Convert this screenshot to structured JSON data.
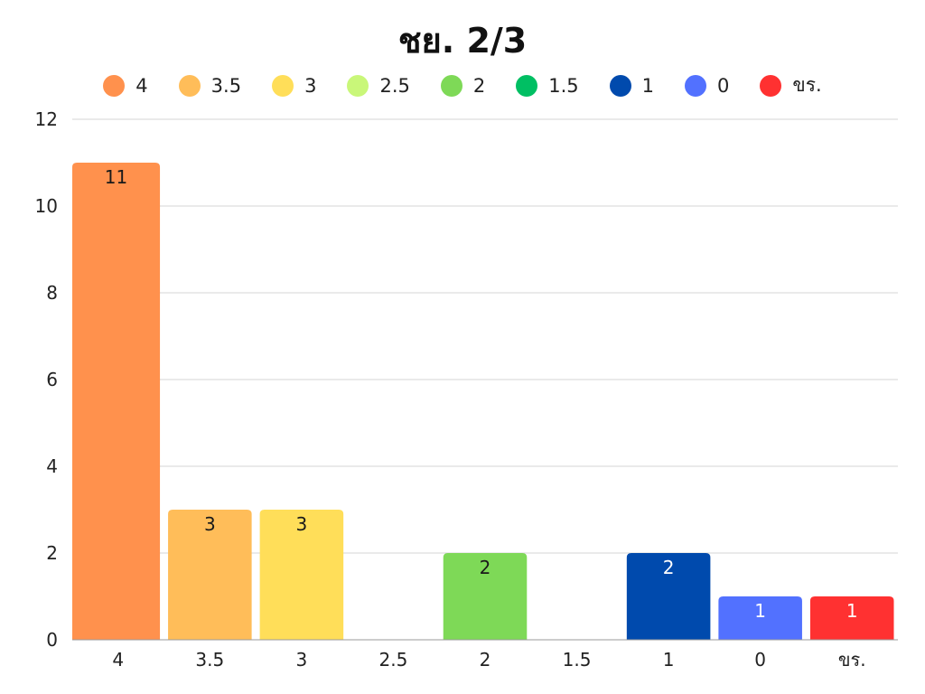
{
  "chart_data": {
    "type": "bar",
    "title": "ชย. 2/3",
    "xlabel": "",
    "ylabel": "",
    "categories": [
      "4",
      "3.5",
      "3",
      "2.5",
      "2",
      "1.5",
      "1",
      "0",
      "ขร."
    ],
    "values": [
      11,
      3,
      3,
      0,
      2,
      0,
      2,
      1,
      1
    ],
    "colors": [
      "#FF914D",
      "#FFBD59",
      "#FFDE59",
      "#C9F779",
      "#7ED957",
      "#00BF63",
      "#004AAD",
      "#5271FF",
      "#FF3131"
    ],
    "label_colors": [
      "#1a1a1a",
      "#1a1a1a",
      "#1a1a1a",
      "#1a1a1a",
      "#1a1a1a",
      "#1a1a1a",
      "#ffffff",
      "#ffffff",
      "#ffffff"
    ],
    "ylim": [
      0,
      12
    ],
    "yticks": [
      0,
      2,
      4,
      6,
      8,
      10,
      12
    ],
    "grid": true,
    "legend": {
      "placement": "top-center",
      "entries": [
        "4",
        "3.5",
        "3",
        "2.5",
        "2",
        "1.5",
        "1",
        "0",
        "ขร."
      ]
    }
  }
}
